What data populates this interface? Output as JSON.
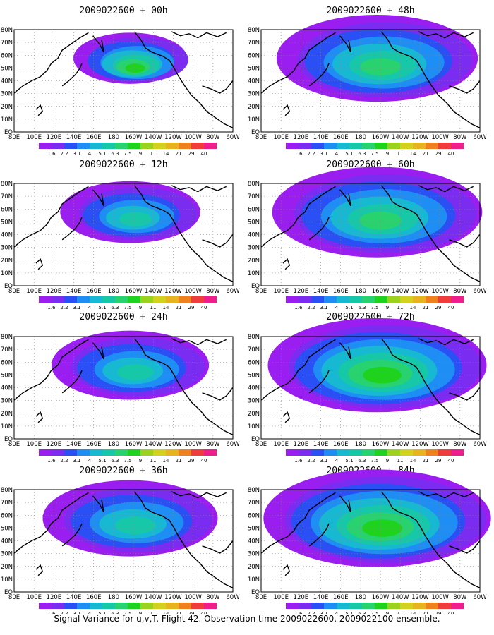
{
  "figure": {
    "caption": "Signal Variance for u,v,T. Flight 42. Observation time 2009022600. 2009022100 ensemble."
  },
  "map_axes": {
    "lon_labels": [
      "80E",
      "100E",
      "120E",
      "140E",
      "160E",
      "180",
      "160W",
      "140W",
      "120W",
      "100W",
      "80W",
      "60W"
    ],
    "lat_labels": [
      "EQ",
      "10N",
      "20N",
      "30N",
      "40N",
      "50N",
      "60N",
      "70N",
      "80N"
    ],
    "grid": "dotted"
  },
  "colorbar": {
    "levels": [
      "1.6",
      "2.2",
      "3.1",
      "4",
      "5.1",
      "6.3",
      "7.5",
      "9",
      "11",
      "14",
      "21",
      "29",
      "40"
    ],
    "colors": [
      "#9b1ef0",
      "#7a2cf0",
      "#2a4ff5",
      "#1e8ef5",
      "#17b9d2",
      "#17c8a8",
      "#28d26e",
      "#1ed21e",
      "#9bd21e",
      "#d2d21e",
      "#e6b41e",
      "#f0821e",
      "#f03c3c",
      "#f01e8c"
    ]
  },
  "panels": [
    {
      "title": "2009022600 + 00h",
      "coverage": 0.2,
      "peak": 0.55
    },
    {
      "title": "2009022600 + 48h",
      "coverage": 0.7,
      "peak": 0.45
    },
    {
      "title": "2009022600 + 12h",
      "coverage": 0.35,
      "peak": 0.35
    },
    {
      "title": "2009022600 + 60h",
      "coverage": 0.75,
      "peak": 0.5
    },
    {
      "title": "2009022600 + 24h",
      "coverage": 0.45,
      "peak": 0.35
    },
    {
      "title": "2009022600 + 72h",
      "coverage": 0.8,
      "peak": 0.55
    },
    {
      "title": "2009022600 + 36h",
      "coverage": 0.55,
      "peak": 0.4
    },
    {
      "title": "2009022600 + 84h",
      "coverage": 0.85,
      "peak": 0.6
    }
  ]
}
